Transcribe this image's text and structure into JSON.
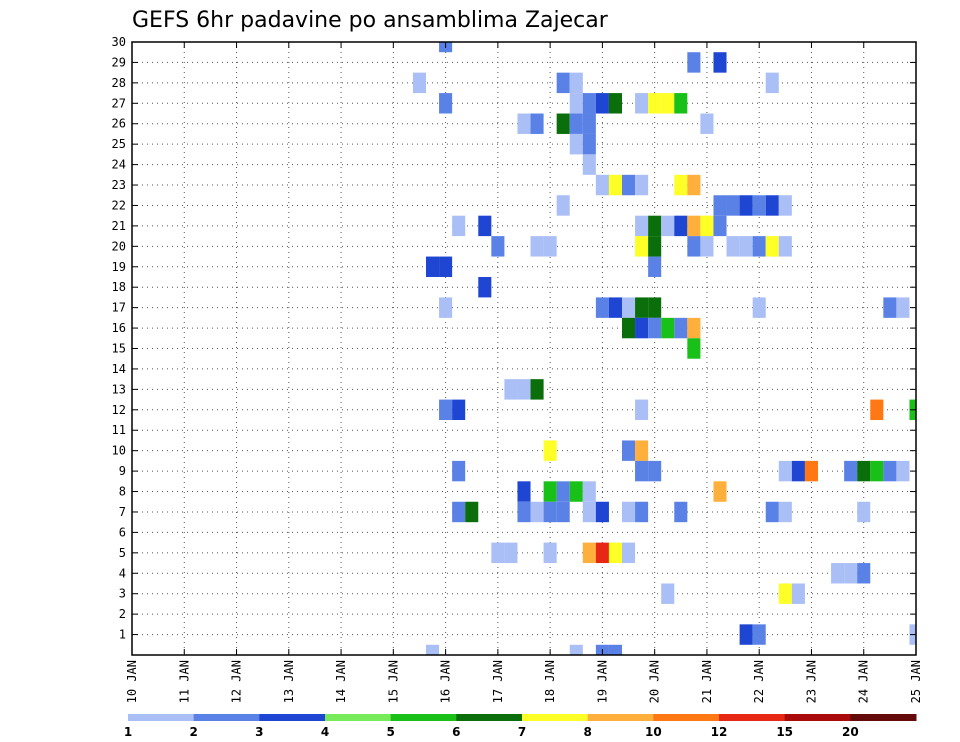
{
  "chart_data": {
    "type": "heatmap",
    "title": "GEFS 6hr padavine po ansamblima Zajecar",
    "x_ticks": [
      "10 JAN",
      "11 JAN",
      "12 JAN",
      "13 JAN",
      "14 JAN",
      "15 JAN",
      "16 JAN",
      "17 JAN",
      "18 JAN",
      "19 JAN",
      "20 JAN",
      "21 JAN",
      "22 JAN",
      "23 JAN",
      "24 JAN",
      "25 JAN"
    ],
    "y_ticks": [
      "1",
      "2",
      "3",
      "4",
      "5",
      "6",
      "7",
      "8",
      "9",
      "10",
      "11",
      "12",
      "13",
      "14",
      "15",
      "16",
      "17",
      "18",
      "19",
      "20",
      "21",
      "22",
      "23",
      "24",
      "25",
      "26",
      "27",
      "28",
      "29",
      "30"
    ],
    "x_range": [
      0,
      60
    ],
    "y_range": [
      0,
      30
    ],
    "grid": true,
    "colorbar": {
      "labels": [
        "1",
        "2",
        "3",
        "4",
        "5",
        "6",
        "7",
        "8",
        "10",
        "12",
        "15",
        "20"
      ],
      "colors": [
        "#aabff5",
        "#5a82e6",
        "#1e46d2",
        "#78eb5a",
        "#18c018",
        "#0a6e0a",
        "#ffff28",
        "#ffaf3c",
        "#ff7814",
        "#e62814",
        "#aa0a0a",
        "#640a0a"
      ]
    },
    "cells": [
      [
        24,
        30,
        2
      ],
      [
        43,
        29,
        2
      ],
      [
        45,
        29,
        3
      ],
      [
        22,
        28,
        1
      ],
      [
        33,
        28,
        2
      ],
      [
        34,
        28,
        1
      ],
      [
        49,
        28,
        1
      ],
      [
        24,
        27,
        2
      ],
      [
        34,
        27,
        1
      ],
      [
        35,
        27,
        2
      ],
      [
        36,
        27,
        3
      ],
      [
        37,
        27,
        6
      ],
      [
        39,
        27,
        1
      ],
      [
        40,
        27,
        7
      ],
      [
        41,
        27,
        7
      ],
      [
        42,
        27,
        5
      ],
      [
        30,
        26,
        1
      ],
      [
        31,
        26,
        2
      ],
      [
        33,
        26,
        6
      ],
      [
        34,
        26,
        2
      ],
      [
        35,
        26,
        2
      ],
      [
        44,
        26,
        1
      ],
      [
        34,
        25,
        1
      ],
      [
        35,
        25,
        2
      ],
      [
        35,
        24,
        1
      ],
      [
        36,
        23,
        1
      ],
      [
        37,
        23,
        7
      ],
      [
        38,
        23,
        2
      ],
      [
        39,
        23,
        1
      ],
      [
        42,
        23,
        7
      ],
      [
        43,
        23,
        8
      ],
      [
        33,
        22,
        1
      ],
      [
        45,
        22,
        2
      ],
      [
        46,
        22,
        2
      ],
      [
        47,
        22,
        3
      ],
      [
        48,
        22,
        2
      ],
      [
        49,
        22,
        3
      ],
      [
        50,
        22,
        1
      ],
      [
        25,
        21,
        1
      ],
      [
        27,
        21,
        3
      ],
      [
        39,
        21,
        1
      ],
      [
        40,
        21,
        6
      ],
      [
        41,
        21,
        1
      ],
      [
        42,
        21,
        3
      ],
      [
        43,
        21,
        8
      ],
      [
        44,
        21,
        7
      ],
      [
        45,
        21,
        2
      ],
      [
        39,
        20,
        7
      ],
      [
        40,
        20,
        6
      ],
      [
        43,
        20,
        2
      ],
      [
        44,
        20,
        1
      ],
      [
        46,
        20,
        1
      ],
      [
        47,
        20,
        1
      ],
      [
        48,
        20,
        2
      ],
      [
        49,
        20,
        7
      ],
      [
        50,
        20,
        1
      ],
      [
        28,
        20,
        2
      ],
      [
        31,
        20,
        1
      ],
      [
        32,
        20,
        1
      ],
      [
        23,
        19,
        3
      ],
      [
        24,
        19,
        3
      ],
      [
        40,
        19,
        2
      ],
      [
        27,
        18,
        3
      ],
      [
        24,
        17,
        1
      ],
      [
        36,
        17,
        2
      ],
      [
        37,
        17,
        3
      ],
      [
        38,
        17,
        1
      ],
      [
        39,
        17,
        6
      ],
      [
        40,
        17,
        6
      ],
      [
        48,
        17,
        1
      ],
      [
        58,
        17,
        2
      ],
      [
        59,
        17,
        1
      ],
      [
        38,
        16,
        6
      ],
      [
        39,
        16,
        3
      ],
      [
        40,
        16,
        2
      ],
      [
        41,
        16,
        5
      ],
      [
        42,
        16,
        2
      ],
      [
        43,
        16,
        8
      ],
      [
        43,
        15,
        5
      ],
      [
        29,
        13,
        1
      ],
      [
        30,
        13,
        1
      ],
      [
        31,
        13,
        6
      ],
      [
        24,
        12,
        2
      ],
      [
        25,
        12,
        3
      ],
      [
        39,
        12,
        1
      ],
      [
        57,
        12,
        10
      ],
      [
        60,
        12,
        5
      ],
      [
        32,
        10,
        7
      ],
      [
        38,
        10,
        2
      ],
      [
        39,
        10,
        8
      ],
      [
        25,
        9,
        2
      ],
      [
        39,
        9,
        2
      ],
      [
        40,
        9,
        2
      ],
      [
        50,
        9,
        1
      ],
      [
        51,
        9,
        3
      ],
      [
        52,
        9,
        10
      ],
      [
        55,
        9,
        2
      ],
      [
        56,
        9,
        6
      ],
      [
        57,
        9,
        5
      ],
      [
        58,
        9,
        2
      ],
      [
        59,
        9,
        1
      ],
      [
        30,
        8,
        3
      ],
      [
        32,
        8,
        5
      ],
      [
        33,
        8,
        2
      ],
      [
        34,
        8,
        5
      ],
      [
        35,
        8,
        1
      ],
      [
        45,
        8,
        8
      ],
      [
        25,
        7,
        2
      ],
      [
        26,
        7,
        6
      ],
      [
        30,
        7,
        2
      ],
      [
        31,
        7,
        1
      ],
      [
        32,
        7,
        2
      ],
      [
        33,
        7,
        2
      ],
      [
        35,
        7,
        1
      ],
      [
        36,
        7,
        3
      ],
      [
        38,
        7,
        1
      ],
      [
        39,
        7,
        2
      ],
      [
        42,
        7,
        2
      ],
      [
        49,
        7,
        2
      ],
      [
        50,
        7,
        1
      ],
      [
        56,
        7,
        1
      ],
      [
        28,
        5,
        1
      ],
      [
        29,
        5,
        1
      ],
      [
        32,
        5,
        1
      ],
      [
        35,
        5,
        8
      ],
      [
        36,
        5,
        12
      ],
      [
        37,
        5,
        7
      ],
      [
        38,
        5,
        1
      ],
      [
        54,
        4,
        1
      ],
      [
        55,
        4,
        1
      ],
      [
        56,
        4,
        2
      ],
      [
        41,
        3,
        1
      ],
      [
        50,
        3,
        7
      ],
      [
        51,
        3,
        1
      ],
      [
        47,
        1,
        3
      ],
      [
        48,
        1,
        2
      ],
      [
        60,
        1,
        1
      ],
      [
        23,
        0,
        1
      ],
      [
        34,
        0,
        1
      ],
      [
        36,
        0,
        2
      ],
      [
        37,
        0,
        2
      ]
    ]
  }
}
